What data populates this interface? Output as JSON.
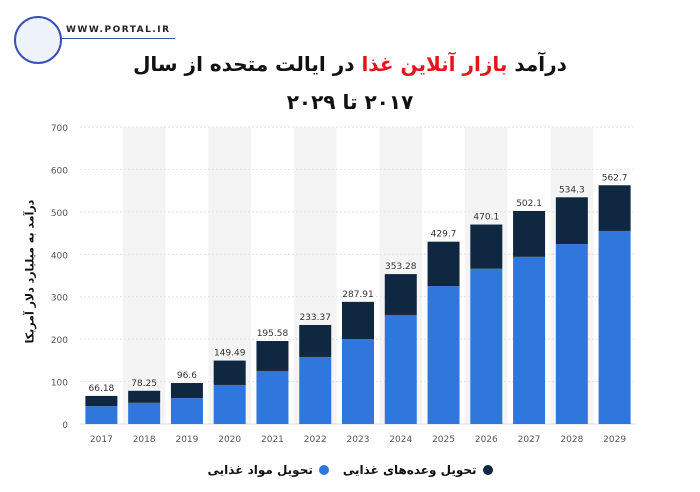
{
  "brand": {
    "url": "WWW.PORTAL.IR"
  },
  "title": {
    "part1": "درآمد ",
    "highlight": "بازار آنلاین غذا",
    "part2": " در ایالت متحده از سال",
    "line2": "۲۰۱۷ تا ۲۰۲۹",
    "highlight_color": "#e8141b"
  },
  "chart_data": {
    "type": "bar",
    "stacked": true,
    "categories": [
      "2017",
      "2018",
      "2019",
      "2020",
      "2021",
      "2022",
      "2023",
      "2024",
      "2025",
      "2026",
      "2027",
      "2028",
      "2029"
    ],
    "series": [
      {
        "name": "تحویل مواد غذایی",
        "color": "#2f77dc",
        "values": [
          42,
          50,
          61,
          92,
          125,
          158,
          200,
          257,
          325,
          366,
          394,
          424,
          455
        ]
      },
      {
        "name": "تحویل وعده‌های غذایی",
        "color": "#0f2740",
        "values": [
          24.18,
          28.25,
          35.6,
          57.49,
          70.58,
          75.37,
          87.91,
          96.28,
          104.7,
          104.1,
          108.1,
          110.3,
          107.7
        ]
      }
    ],
    "totals": [
      "66.18",
      "78.25",
      "96.6",
      "149.49",
      "195.58",
      "233.37",
      "287.91",
      "353.28",
      "429.7",
      "470.1",
      "502.1",
      "534.3",
      "562.7"
    ],
    "ylabel": "درآمد به میلیارد دلار آمریکا",
    "ylim": [
      0,
      700
    ],
    "yticks": [
      0,
      100,
      200,
      300,
      400,
      500,
      600,
      700
    ],
    "grid": true,
    "legend": "bottom"
  }
}
